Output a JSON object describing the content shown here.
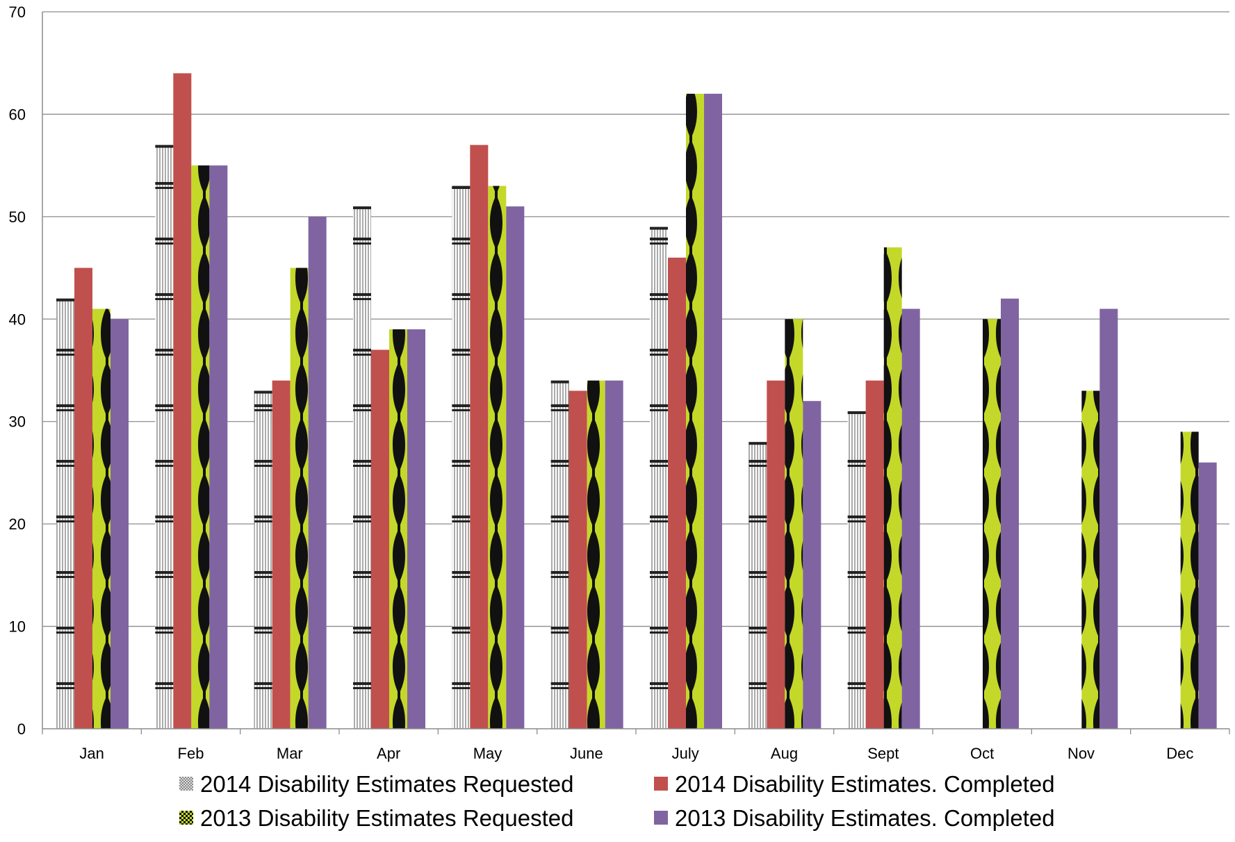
{
  "chart_data": {
    "type": "bar",
    "title": "",
    "xlabel": "",
    "ylabel": "",
    "ylim": [
      0,
      70
    ],
    "yticks": [
      0,
      10,
      20,
      30,
      40,
      50,
      60,
      70
    ],
    "grid": true,
    "legend_position": "bottom",
    "categories": [
      "Jan",
      "Feb",
      "Mar",
      "Apr",
      "May",
      "June",
      "July",
      "Aug",
      "Sept",
      "Oct",
      "Nov",
      "Dec"
    ],
    "series": [
      {
        "name": "2014 Disability Estimates Requested",
        "color": "#ffffff",
        "pattern": "white-black-striped",
        "values": [
          42,
          57,
          33,
          51,
          53,
          34,
          49,
          28,
          31,
          null,
          null,
          null
        ]
      },
      {
        "name": "2014 Disability Estimates. Completed",
        "color": "#c0504d",
        "pattern": "solid",
        "values": [
          45,
          64,
          34,
          37,
          57,
          33,
          46,
          34,
          34,
          null,
          null,
          null
        ]
      },
      {
        "name": "2013 Disability Estimates Requested",
        "color": "#c4d829",
        "pattern": "black-yellow-wave",
        "values": [
          41,
          55,
          45,
          39,
          53,
          34,
          62,
          40,
          47,
          40,
          33,
          29
        ]
      },
      {
        "name": "2013 Disability Estimates. Completed",
        "color": "#8064a2",
        "pattern": "solid",
        "values": [
          40,
          55,
          50,
          39,
          51,
          34,
          62,
          32,
          41,
          42,
          41,
          26
        ]
      }
    ]
  }
}
